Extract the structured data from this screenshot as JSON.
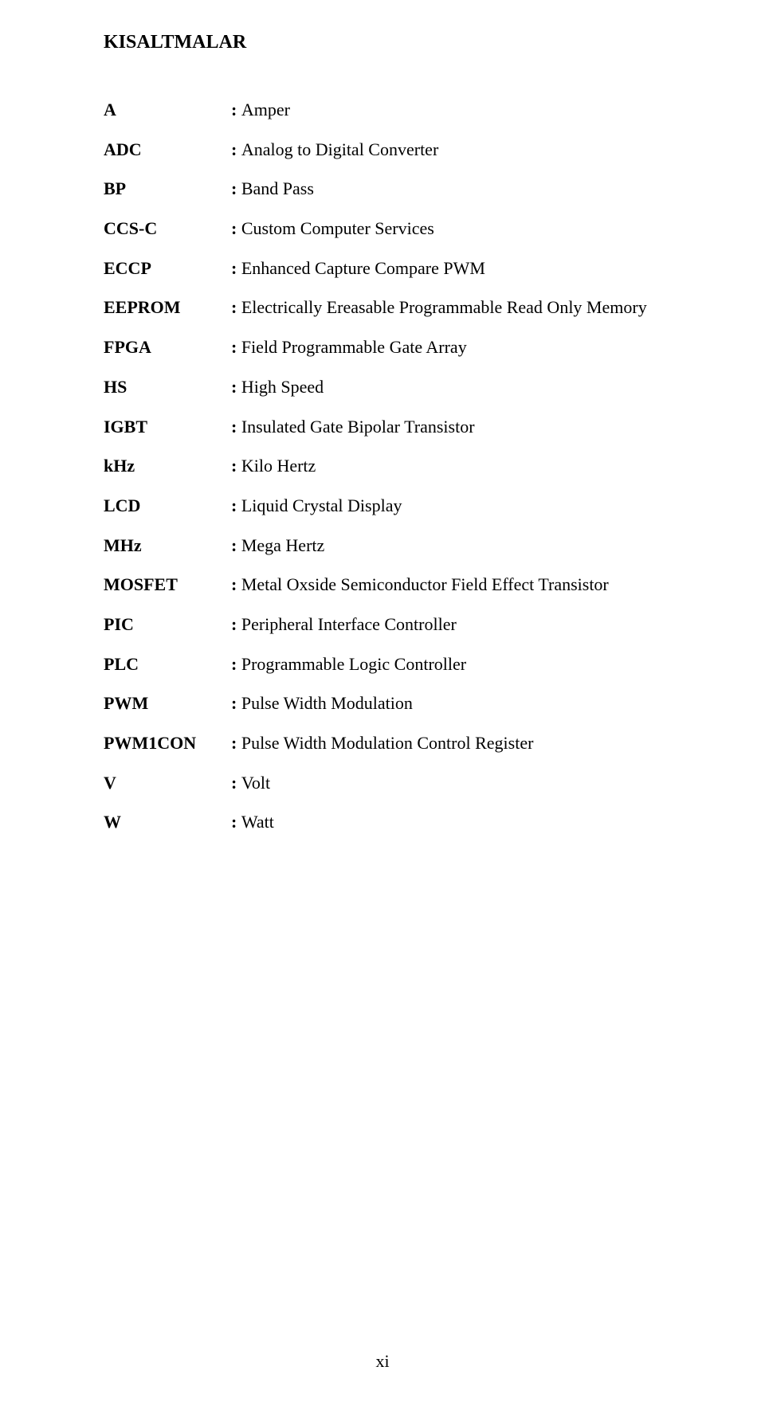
{
  "title": "KISALTMALAR",
  "entries": [
    {
      "abbr": "A",
      "def": ": Amper"
    },
    {
      "abbr": "ADC",
      "def": ": Analog to Digital Converter"
    },
    {
      "abbr": "BP",
      "def": ": Band Pass"
    },
    {
      "abbr": "CCS-C",
      "def": ": Custom Computer Services"
    },
    {
      "abbr": "ECCP",
      "def": ": Enhanced Capture Compare PWM"
    },
    {
      "abbr": "EEPROM",
      "def": ": Electrically Ereasable Programmable Read Only Memory"
    },
    {
      "abbr": "FPGA",
      "def": ": Field Programmable Gate Array"
    },
    {
      "abbr": "HS",
      "def": ": High Speed"
    },
    {
      "abbr": "IGBT",
      "def": ": Insulated Gate Bipolar Transistor"
    },
    {
      "abbr": "kHz",
      "def": ": Kilo Hertz"
    },
    {
      "abbr": "LCD",
      "def": ": Liquid Crystal Display"
    },
    {
      "abbr": "MHz",
      "def": ": Mega Hertz"
    },
    {
      "abbr": "MOSFET",
      "def": ": Metal Oxside Semiconductor Field Effect Transistor"
    },
    {
      "abbr": "PIC",
      "def": ": Peripheral Interface Controller"
    },
    {
      "abbr": "PLC",
      "def": ": Programmable Logic Controller"
    },
    {
      "abbr": "PWM",
      "def": ": Pulse Width Modulation"
    },
    {
      "abbr": "PWM1CON",
      "def": ": Pulse Width Modulation Control Register"
    },
    {
      "abbr": "V",
      "def": ": Volt"
    },
    {
      "abbr": "W",
      "def": ": Watt"
    }
  ],
  "page_number": "xi"
}
